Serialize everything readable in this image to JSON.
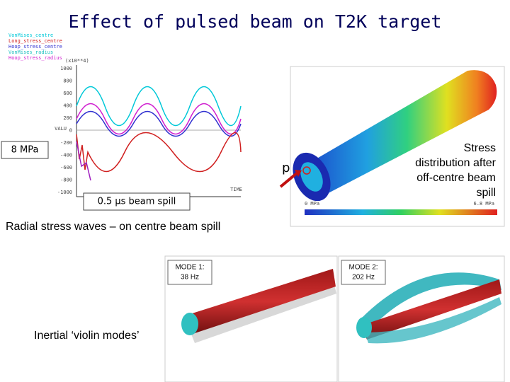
{
  "slide": {
    "title": "Effect of pulsed beam on T2K target",
    "plot": {
      "legend": [
        "VonMises_centre",
        "Long_stress_centre",
        "Hoop_stress_centre",
        "VonMises_radius",
        "Hoop_stress_radius"
      ],
      "scale_note": "(x10**4)",
      "y_label": "VALU",
      "yticks": [
        "1000",
        "800",
        "600",
        "400",
        "200",
        "0",
        "-200",
        "-400",
        "-600",
        "-800",
        "-1000"
      ],
      "x_label": "TIME"
    },
    "pressure_label": "8 MPa",
    "spill_label": "0.5 μs beam spill",
    "caption_left": "Radial stress waves – on centre beam spill",
    "beam_label": "p",
    "scale_min": "0 MPa",
    "scale_max": "6.8 MPa",
    "caption_right": [
      "Stress",
      "distribution after",
      "off-centre beam",
      "spill"
    ],
    "mode1": [
      "MODE 1:",
      "38 Hz"
    ],
    "mode2": [
      "MODE 2:",
      "202 Hz"
    ],
    "caption_bottom": "Inertial ‘violin modes’"
  }
}
